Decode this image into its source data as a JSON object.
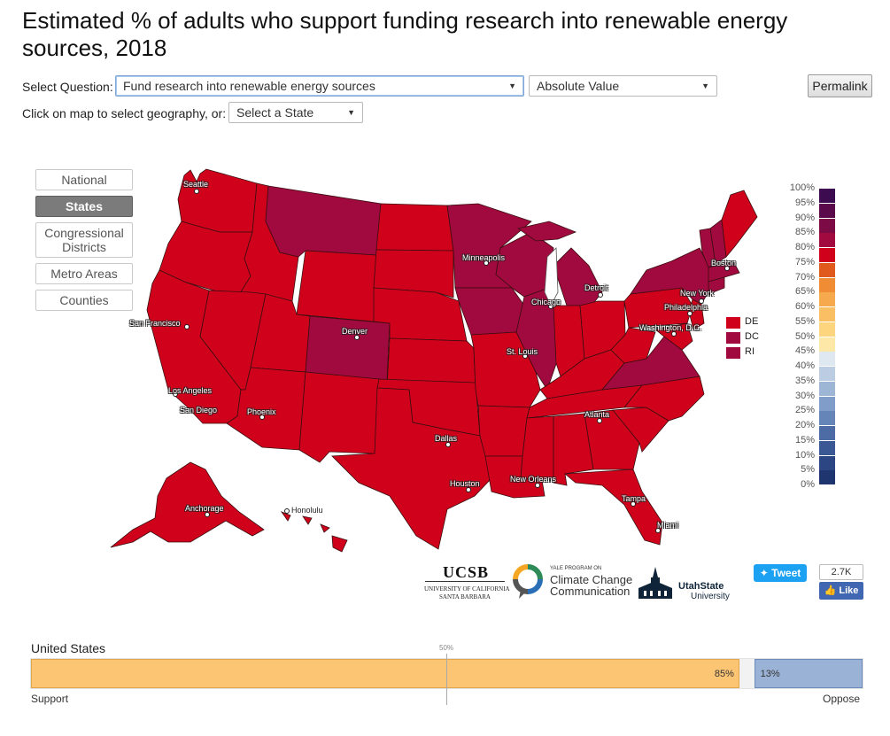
{
  "title": "Estimated % of adults who support funding research into renewable energy sources, 2018",
  "controls": {
    "question_label": "Select Question:",
    "question_value": "Fund research into renewable energy sources",
    "measure_value": "Absolute Value",
    "geo_label": "Click on map to select geography, or:",
    "state_value": "Select a State",
    "permalink_label": "Permalink"
  },
  "geo_buttons": [
    "National",
    "States",
    "Congressional Districts",
    "Metro Areas",
    "Counties"
  ],
  "active_geo": "States",
  "colors": {
    "fill_85": "#d0021b",
    "fill_90": "#a10a3e",
    "border": "#3a0d10",
    "support_bar": "#fbc574",
    "oppose_bar": "#99b2d5",
    "neutral_bar": "#f2f2f2"
  },
  "cities": [
    "Seattle",
    "San Francisco",
    "Los Angeles",
    "San Diego",
    "Phoenix",
    "Denver",
    "Dallas",
    "Houston",
    "Minneapolis",
    "Chicago",
    "St. Louis",
    "New Orleans",
    "Atlanta",
    "Tampa",
    "Miami",
    "Detroit",
    "Washington, D.C.",
    "Philadelphia",
    "New York",
    "Boston",
    "Anchorage",
    "Honolulu"
  ],
  "small_states": [
    "DE",
    "DC",
    "RI"
  ],
  "legend": [
    "100%",
    "95%",
    "90%",
    "85%",
    "80%",
    "75%",
    "70%",
    "65%",
    "60%",
    "55%",
    "50%",
    "45%",
    "40%",
    "35%",
    "30%",
    "25%",
    "20%",
    "15%",
    "10%",
    "5%",
    "0%"
  ],
  "legend_colors": [
    "#3d0b4f",
    "#5a0a4b",
    "#7c0a45",
    "#a10a3e",
    "#d0021b",
    "#e05a1e",
    "#f08c34",
    "#f6a94d",
    "#f9bf62",
    "#fcd57e",
    "#fde8a8",
    "#dfe7f0",
    "#bccde3",
    "#9eb6d6",
    "#7f9dc8",
    "#6584b8",
    "#4d6ca6",
    "#3a5894",
    "#2b4682",
    "#1e3570",
    "#13265f"
  ],
  "logos": {
    "ucsb": "UCSB",
    "ucsb_sub1": "UNIVERSITY OF CALIFORNIA",
    "ucsb_sub2": "SANTA BARBARA",
    "yale_small": "YALE PROGRAM ON",
    "yale_line1": "Climate Change",
    "yale_line2": "Communication",
    "usu_line1": "UtahState",
    "usu_line2": "University"
  },
  "social": {
    "tweet": "Tweet",
    "like_count": "2.7K",
    "like": "Like"
  },
  "summary": {
    "geo_name": "United States",
    "midpoint": "50%",
    "support_value": 85,
    "oppose_value": 13,
    "support_text": "85%",
    "oppose_text": "13%",
    "support_label": "Support",
    "oppose_label": "Oppose"
  }
}
